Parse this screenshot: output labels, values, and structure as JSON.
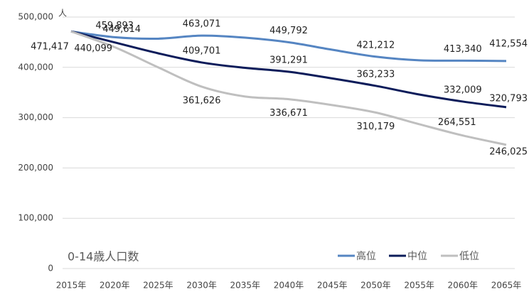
{
  "chart_data": {
    "type": "line",
    "title": "0-14歳人口数",
    "y_unit": "人",
    "categories": [
      "2015年",
      "2020年",
      "2025年",
      "2030年",
      "2035年",
      "2040年",
      "2045年",
      "2050年",
      "2055年",
      "2060年",
      "2065年"
    ],
    "series": [
      {
        "name": "高位",
        "color": "#5585c2",
        "values": [
          471417,
          459893,
          457000,
          463071,
          459000,
          449792,
          435000,
          421212,
          414000,
          413340,
          412554
        ],
        "value_labels": [
          "471,417",
          "459,893",
          null,
          "463,071",
          null,
          "449,792",
          null,
          "421,212",
          null,
          "413,340",
          "412,554"
        ]
      },
      {
        "name": "中位",
        "color": "#0c1c5a",
        "values": [
          471417,
          449614,
          428000,
          409701,
          399000,
          391291,
          378000,
          363233,
          346000,
          332009,
          320793
        ],
        "value_labels": [
          null,
          "449,614",
          null,
          "409,701",
          null,
          "391,291",
          null,
          "363,233",
          null,
          "332,009",
          "320,793"
        ]
      },
      {
        "name": "低位",
        "color": "#bfbfbf",
        "values": [
          471417,
          440099,
          400000,
          361626,
          342000,
          336671,
          325000,
          310179,
          287000,
          264551,
          246025
        ],
        "value_labels": [
          null,
          "440,099",
          null,
          "361,626",
          null,
          "336,671",
          null,
          "310,179",
          null,
          "264,551",
          "246,025"
        ]
      }
    ],
    "ylim": [
      0,
      500000
    ],
    "yticks": [
      0,
      {
        "value": 100000,
        "label": "100,000"
      },
      {
        "value": 200000,
        "label": "200,000"
      },
      {
        "value": 300000,
        "label": "300,000"
      },
      {
        "value": 400000,
        "label": "400,000"
      },
      {
        "value": 500000,
        "label": "500,000"
      }
    ],
    "grid": true,
    "legend": "bottom-right"
  }
}
